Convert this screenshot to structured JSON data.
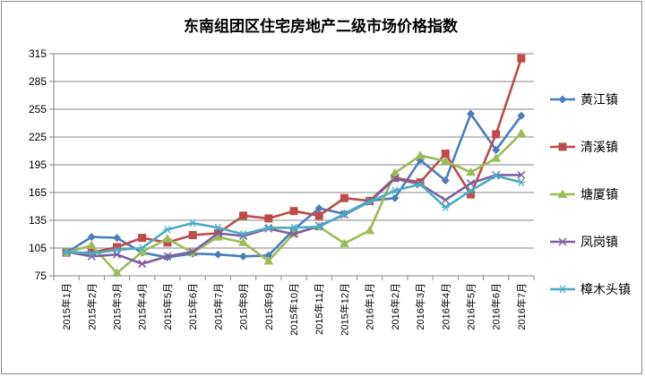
{
  "chart_data": {
    "type": "line",
    "title": "东南组团区住宅房地产二级市场价格指数",
    "xlabel": "",
    "ylabel": "",
    "ylim": [
      75,
      315
    ],
    "yticks": [
      75,
      105,
      135,
      165,
      195,
      225,
      255,
      285,
      315
    ],
    "grid": true,
    "legend_position": "right",
    "categories": [
      "2015年1月",
      "2015年2月",
      "2015年3月",
      "2015年4月",
      "2015年5月",
      "2015年6月",
      "2015年7月",
      "2015年8月",
      "2015年9月",
      "2015年10月",
      "2015年11月",
      "2015年12月",
      "2016年1月",
      "2016年2月",
      "2016年3月",
      "2016年4月",
      "2016年5月",
      "2016年6月",
      "2016年7月"
    ],
    "series": [
      {
        "name": "黄江镇",
        "color": "#4a7ebb",
        "marker": "diamond",
        "values": [
          100,
          117,
          116,
          100,
          95,
          99,
          98,
          96,
          97,
          125,
          148,
          142,
          156,
          159,
          200,
          178,
          250,
          211,
          248
        ]
      },
      {
        "name": "清溪镇",
        "color": "#be4b48",
        "marker": "square",
        "values": [
          100,
          100,
          106,
          116,
          111,
          119,
          121,
          140,
          137,
          145,
          140,
          159,
          156,
          181,
          176,
          207,
          163,
          228,
          310
        ]
      },
      {
        "name": "塘厦镇",
        "color": "#9bbb59",
        "marker": "triangle",
        "values": [
          100,
          108,
          78,
          101,
          115,
          100,
          117,
          111,
          91,
          121,
          128,
          110,
          124,
          186,
          205,
          199,
          187,
          202,
          229
        ]
      },
      {
        "name": "凤岗镇",
        "color": "#7d60a0",
        "marker": "x",
        "values": [
          101,
          96,
          98,
          88,
          96,
          101,
          121,
          118,
          126,
          120,
          129,
          141,
          155,
          180,
          174,
          157,
          175,
          184,
          184
        ]
      },
      {
        "name": "樟木头镇",
        "color": "#4bacc6",
        "marker": "star",
        "values": [
          101,
          99,
          103,
          105,
          125,
          132,
          127,
          120,
          127,
          127,
          128,
          142,
          155,
          167,
          174,
          149,
          167,
          183,
          176
        ]
      }
    ]
  }
}
